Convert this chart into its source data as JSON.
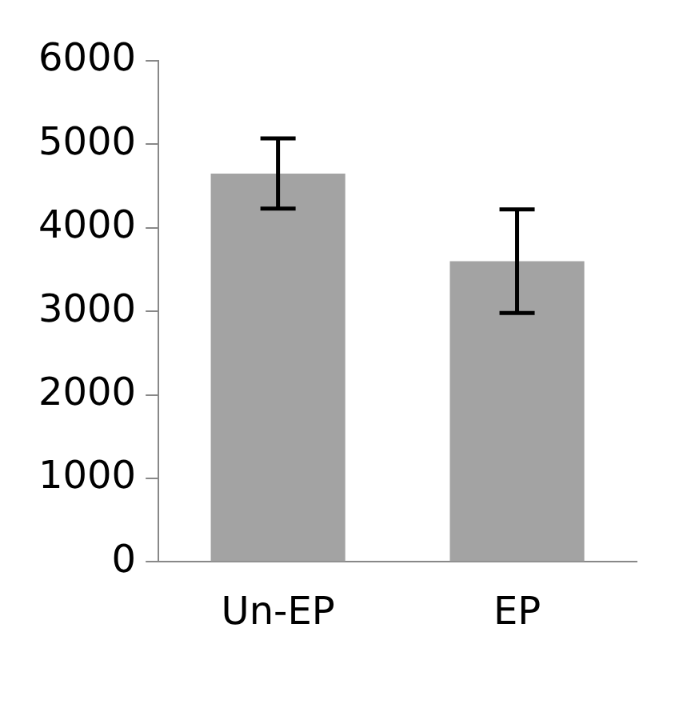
{
  "chart_data": {
    "type": "bar",
    "categories": [
      "Un-EP",
      "EP"
    ],
    "values": [
      4650,
      3600
    ],
    "errors": [
      420,
      620
    ],
    "color": "#a3a3a3",
    "ylim": [
      0,
      6000
    ],
    "yticks": [
      0,
      1000,
      2000,
      3000,
      4000,
      5000,
      6000
    ],
    "grid": false,
    "legend": false
  }
}
